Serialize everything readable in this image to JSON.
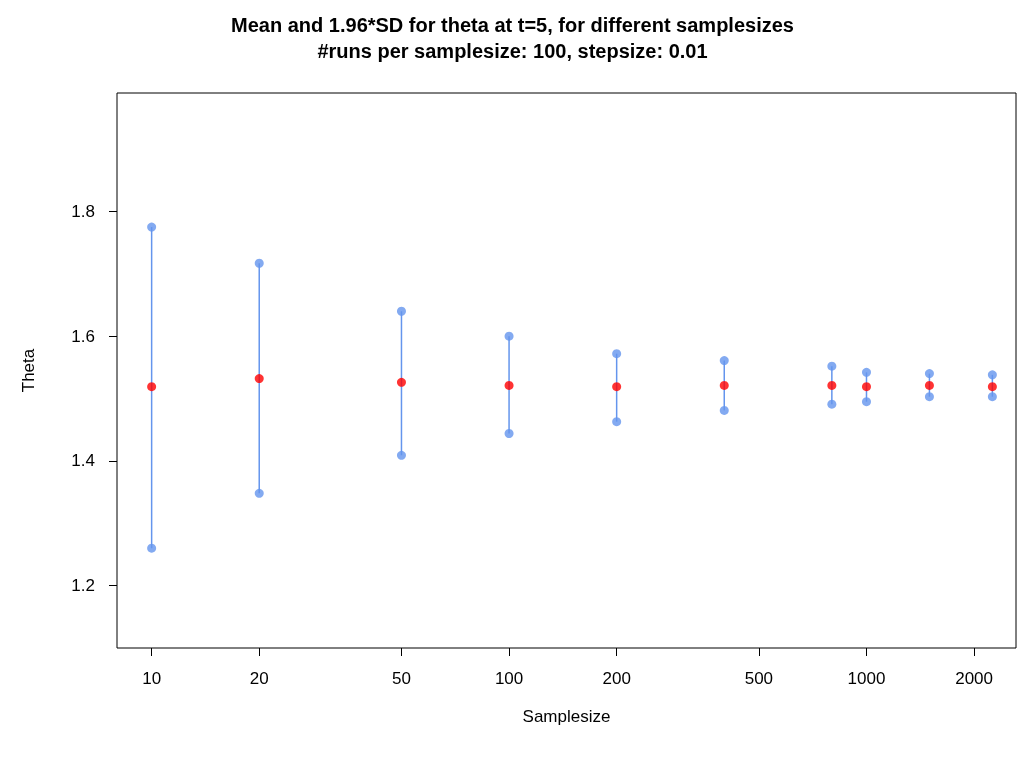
{
  "chart_data": {
    "type": "scatter",
    "title": "Mean and 1.96*SD for theta at t=5, for different samplesizes",
    "subtitle": "#runs per samplesize: 100, stepsize: 0.01",
    "xlabel": "Samplesize",
    "ylabel": "Theta",
    "x": [
      10,
      20,
      50,
      100,
      200,
      400,
      800,
      1000,
      1500,
      2250
    ],
    "series": [
      {
        "color": "#6495ed",
        "values": [
          1.775,
          1.717,
          1.64,
          1.6,
          1.572,
          1.561,
          1.552,
          1.542,
          1.54,
          1.538
        ]
      },
      {
        "color": "#6495ed",
        "values": [
          1.26,
          1.348,
          1.409,
          1.444,
          1.463,
          1.481,
          1.491,
          1.495,
          1.503,
          1.503
        ]
      },
      {
        "color": "#ff0000",
        "values": [
          1.519,
          1.532,
          1.526,
          1.521,
          1.519,
          1.521,
          1.521,
          1.519,
          1.521,
          1.519
        ],
        "errors": [
          [
            1.26,
            1.775
          ],
          [
            1.348,
            1.717
          ],
          [
            1.409,
            1.64
          ],
          [
            1.444,
            1.6
          ],
          [
            1.463,
            1.572
          ],
          [
            1.481,
            1.561
          ],
          [
            1.491,
            1.552
          ],
          [
            1.495,
            1.542
          ],
          [
            1.503,
            1.54
          ],
          [
            1.503,
            1.538
          ]
        ]
      }
    ],
    "log": "x",
    "xlim": [
      8,
      2620
    ],
    "xticks": [
      10,
      20,
      50,
      100,
      200,
      500,
      1000,
      2000
    ],
    "ylim": [
      1.1,
      1.99
    ],
    "yticks": [
      1.2,
      1.4,
      1.6,
      1.8
    ],
    "marker": "circle",
    "grid": false
  }
}
